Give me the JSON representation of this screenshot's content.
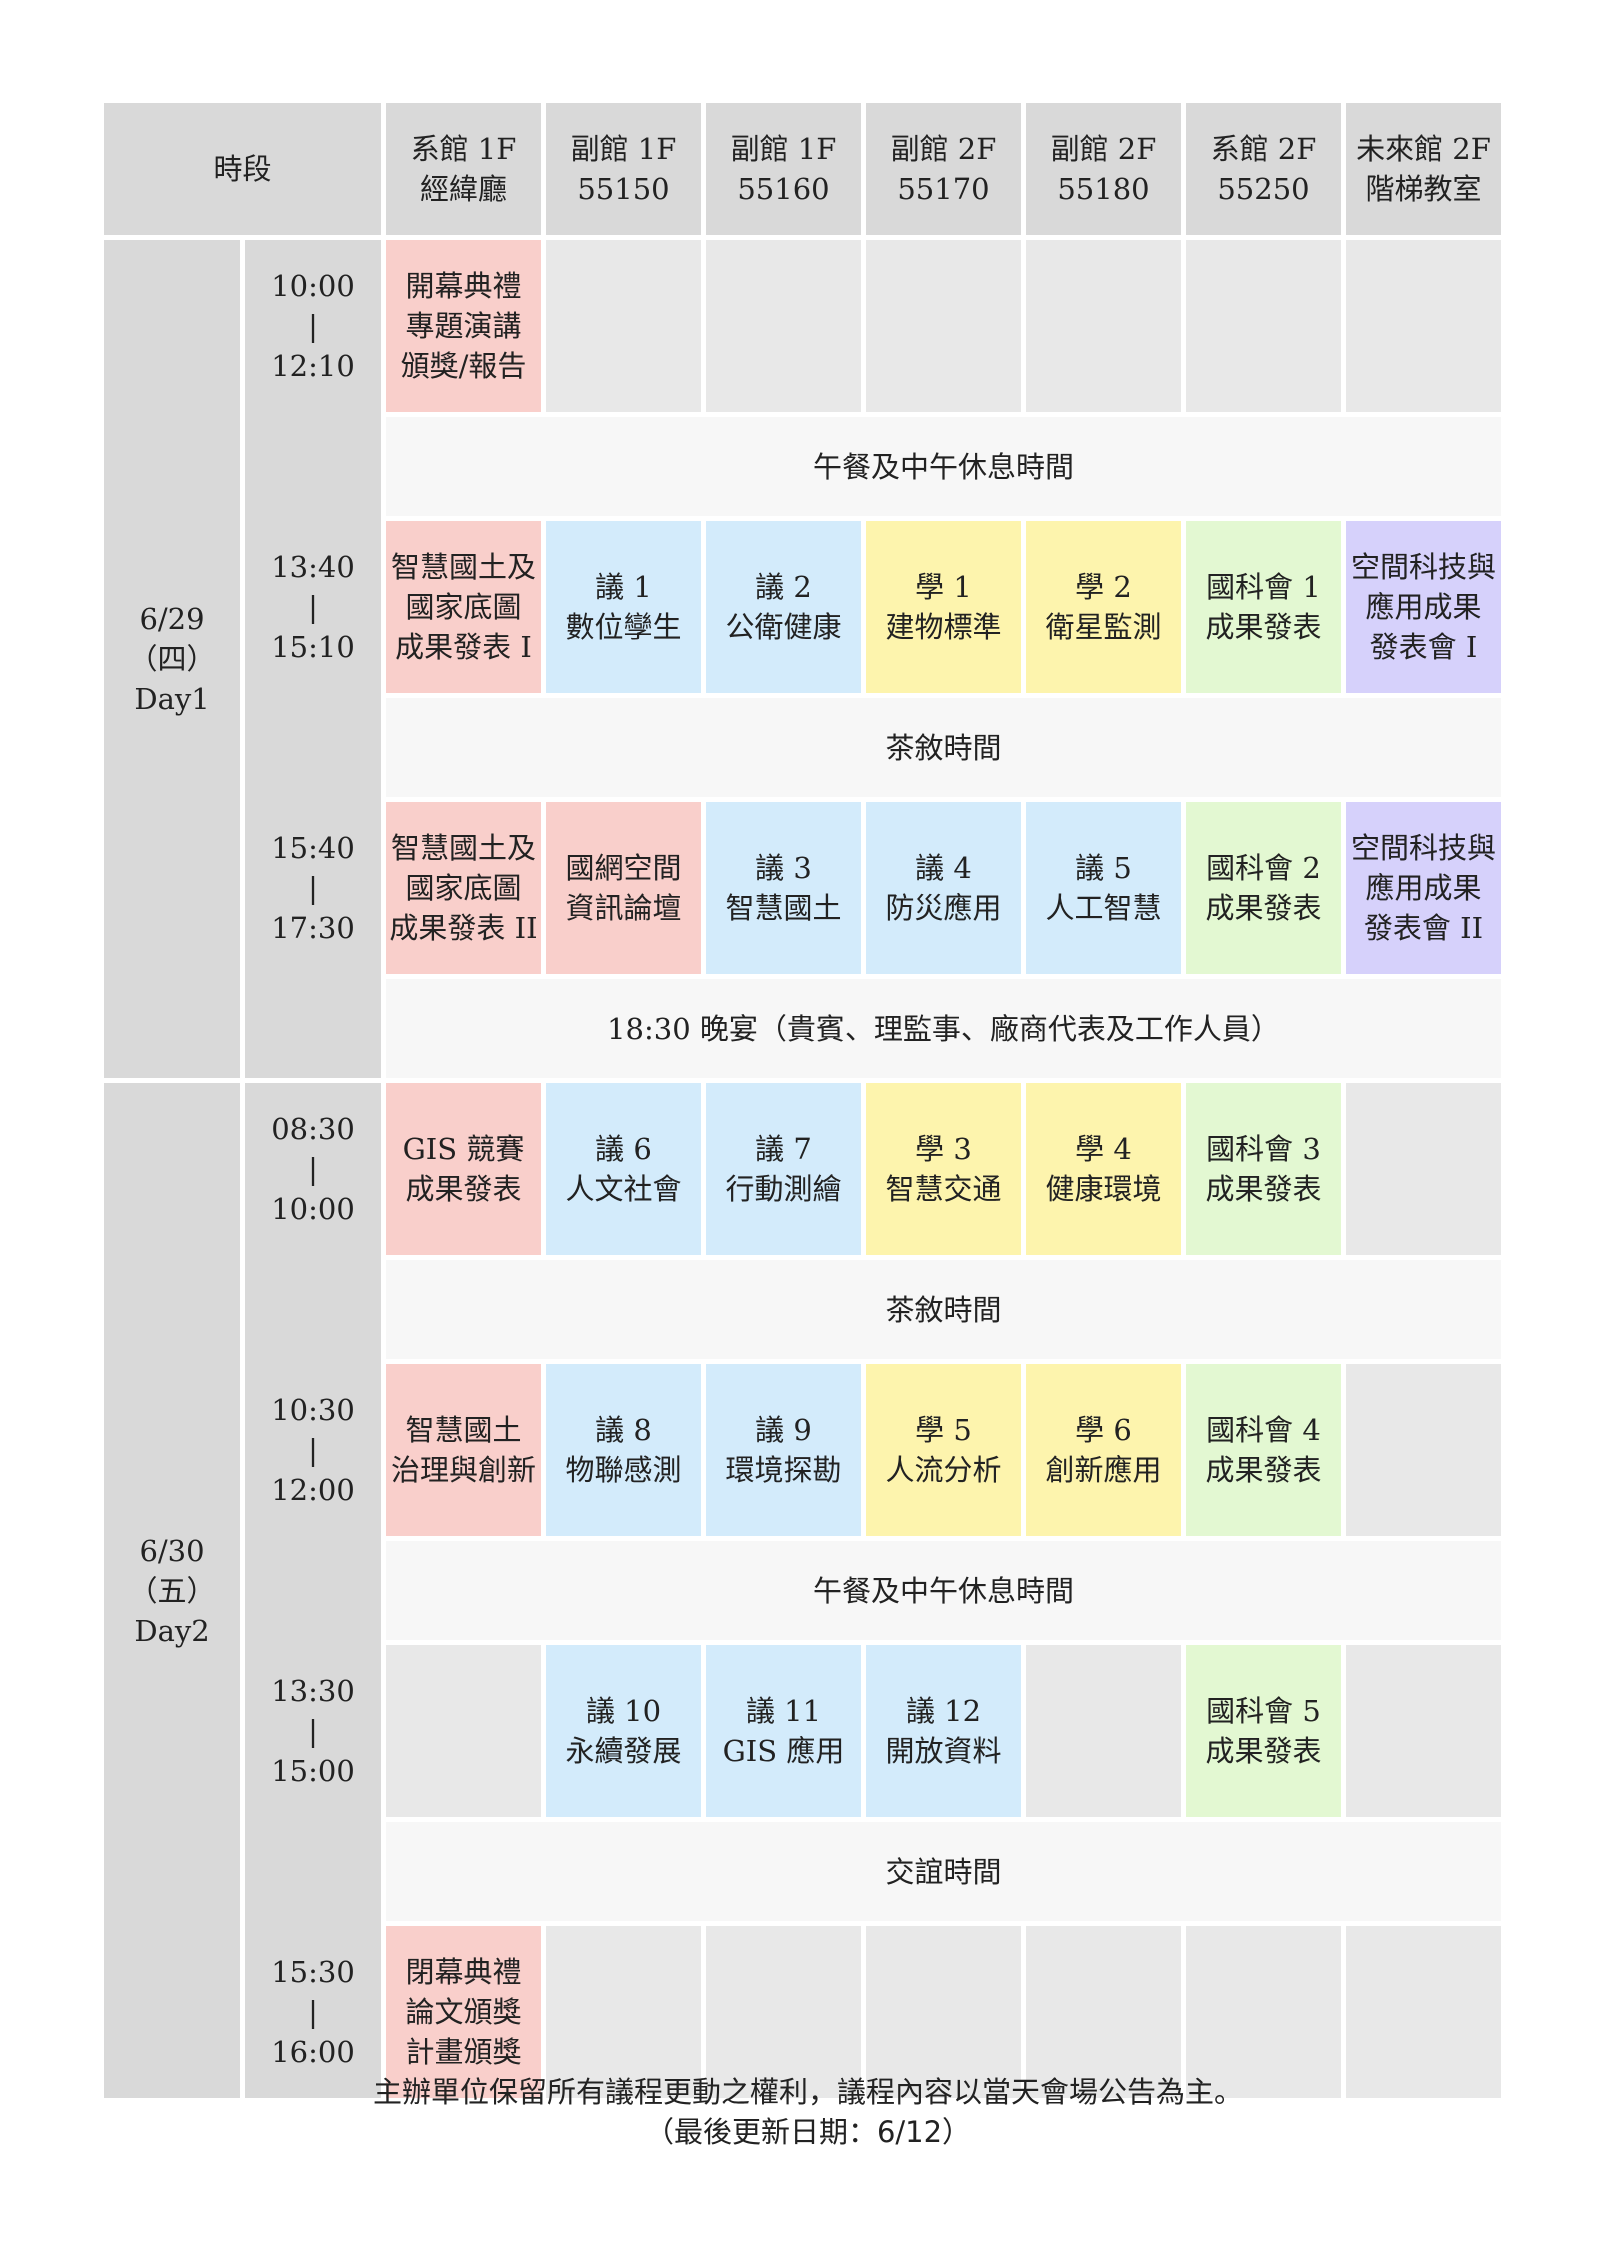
{
  "header": {
    "time_label": "時段",
    "rooms": [
      [
        "系館 1F",
        "經緯廳"
      ],
      [
        "副館 1F",
        "55150"
      ],
      [
        "副館 1F",
        "55160"
      ],
      [
        "副館 2F",
        "55170"
      ],
      [
        "副館 2F",
        "55180"
      ],
      [
        "系館 2F",
        "55250"
      ],
      [
        "未來館 2F",
        "階梯教室"
      ]
    ]
  },
  "days": [
    {
      "date": "6/29",
      "weekday": "（四）",
      "label": "Day1"
    },
    {
      "date": "6/30",
      "weekday": "（五）",
      "label": "Day2"
    }
  ],
  "separator": "|",
  "colors": {
    "red": "#f9cfcb",
    "blue": "#d3ebfb",
    "yellow": "#fdf4ad",
    "green": "#e3f8d2",
    "purple": "#d6d1fb",
    "empty": "#e8e8e8",
    "header": "#d9d9d9"
  },
  "rows": [
    {
      "type": "session",
      "start": "10:00",
      "end": "12:10",
      "cells": [
        {
          "color": "red",
          "lines": [
            "開幕典禮",
            "專題演講",
            "頒獎/報告"
          ]
        },
        {
          "color": "empty",
          "lines": []
        },
        {
          "color": "empty",
          "lines": []
        },
        {
          "color": "empty",
          "lines": []
        },
        {
          "color": "empty",
          "lines": []
        },
        {
          "color": "empty",
          "lines": []
        },
        {
          "color": "empty",
          "lines": []
        }
      ]
    },
    {
      "type": "break",
      "text": "午餐及中午休息時間"
    },
    {
      "type": "session",
      "start": "13:40",
      "end": "15:10",
      "cells": [
        {
          "color": "red",
          "lines": [
            "智慧國土及",
            "國家底圖",
            "成果發表 I"
          ]
        },
        {
          "color": "blue",
          "lines": [
            "議 1",
            "數位孿生"
          ]
        },
        {
          "color": "blue",
          "lines": [
            "議 2",
            "公衛健康"
          ]
        },
        {
          "color": "yellow",
          "lines": [
            "學 1",
            "建物標準"
          ]
        },
        {
          "color": "yellow",
          "lines": [
            "學 2",
            "衛星監測"
          ]
        },
        {
          "color": "green",
          "lines": [
            "國科會 1",
            "成果發表"
          ]
        },
        {
          "color": "purple",
          "lines": [
            "空間科技與",
            "應用成果",
            "發表會 I"
          ]
        }
      ]
    },
    {
      "type": "break",
      "text": "茶敘時間"
    },
    {
      "type": "session",
      "start": "15:40",
      "end": "17:30",
      "cells": [
        {
          "color": "red",
          "lines": [
            "智慧國土及",
            "國家底圖",
            "成果發表 II"
          ]
        },
        {
          "color": "red",
          "lines": [
            "國網空間",
            "資訊論壇"
          ]
        },
        {
          "color": "blue",
          "lines": [
            "議 3",
            "智慧國土"
          ]
        },
        {
          "color": "blue",
          "lines": [
            "議 4",
            "防災應用"
          ]
        },
        {
          "color": "blue",
          "lines": [
            "議 5",
            "人工智慧"
          ]
        },
        {
          "color": "green",
          "lines": [
            "國科會 2",
            "成果發表"
          ]
        },
        {
          "color": "purple",
          "lines": [
            "空間科技與",
            "應用成果",
            "發表會 II"
          ]
        }
      ]
    },
    {
      "type": "break",
      "text": "18:30 晚宴（貴賓、理監事、廠商代表及工作人員）"
    },
    {
      "type": "session",
      "start": "08:30",
      "end": "10:00",
      "cells": [
        {
          "color": "red",
          "lines": [
            "GIS 競賽",
            "成果發表"
          ]
        },
        {
          "color": "blue",
          "lines": [
            "議 6",
            "人文社會"
          ]
        },
        {
          "color": "blue",
          "lines": [
            "議 7",
            "行動測繪"
          ]
        },
        {
          "color": "yellow",
          "lines": [
            "學 3",
            "智慧交通"
          ]
        },
        {
          "color": "yellow",
          "lines": [
            "學 4",
            "健康環境"
          ]
        },
        {
          "color": "green",
          "lines": [
            "國科會 3",
            "成果發表"
          ]
        },
        {
          "color": "empty",
          "lines": []
        }
      ]
    },
    {
      "type": "break",
      "text": "茶敘時間"
    },
    {
      "type": "session",
      "start": "10:30",
      "end": "12:00",
      "cells": [
        {
          "color": "red",
          "lines": [
            "智慧國土",
            "治理與創新"
          ]
        },
        {
          "color": "blue",
          "lines": [
            "議 8",
            "物聯感測"
          ]
        },
        {
          "color": "blue",
          "lines": [
            "議 9",
            "環境探勘"
          ]
        },
        {
          "color": "yellow",
          "lines": [
            "學 5",
            "人流分析"
          ]
        },
        {
          "color": "yellow",
          "lines": [
            "學 6",
            "創新應用"
          ]
        },
        {
          "color": "green",
          "lines": [
            "國科會 4",
            "成果發表"
          ]
        },
        {
          "color": "empty",
          "lines": []
        }
      ]
    },
    {
      "type": "break",
      "text": "午餐及中午休息時間"
    },
    {
      "type": "session",
      "start": "13:30",
      "end": "15:00",
      "cells": [
        {
          "color": "empty",
          "lines": []
        },
        {
          "color": "blue",
          "lines": [
            "議  10",
            "永續發展"
          ]
        },
        {
          "color": "blue",
          "lines": [
            "議 11",
            "GIS 應用"
          ]
        },
        {
          "color": "blue",
          "lines": [
            "議 12",
            "開放資料"
          ]
        },
        {
          "color": "empty",
          "lines": []
        },
        {
          "color": "green",
          "lines": [
            "國科會 5",
            "成果發表"
          ]
        },
        {
          "color": "empty",
          "lines": []
        }
      ]
    },
    {
      "type": "break",
      "text": "交誼時間"
    },
    {
      "type": "session",
      "start": "15:30",
      "end": "16:00",
      "cells": [
        {
          "color": "red",
          "lines": [
            "閉幕典禮",
            "論文頒獎",
            "計畫頒獎"
          ]
        },
        {
          "color": "empty",
          "lines": []
        },
        {
          "color": "empty",
          "lines": []
        },
        {
          "color": "empty",
          "lines": []
        },
        {
          "color": "empty",
          "lines": []
        },
        {
          "color": "empty",
          "lines": []
        },
        {
          "color": "empty",
          "lines": []
        }
      ]
    }
  ],
  "footer": {
    "note": "主辦單位保留所有議程更動之權利，議程內容以當天會場公告為主。",
    "updated": "（最後更新日期：6/12）"
  }
}
